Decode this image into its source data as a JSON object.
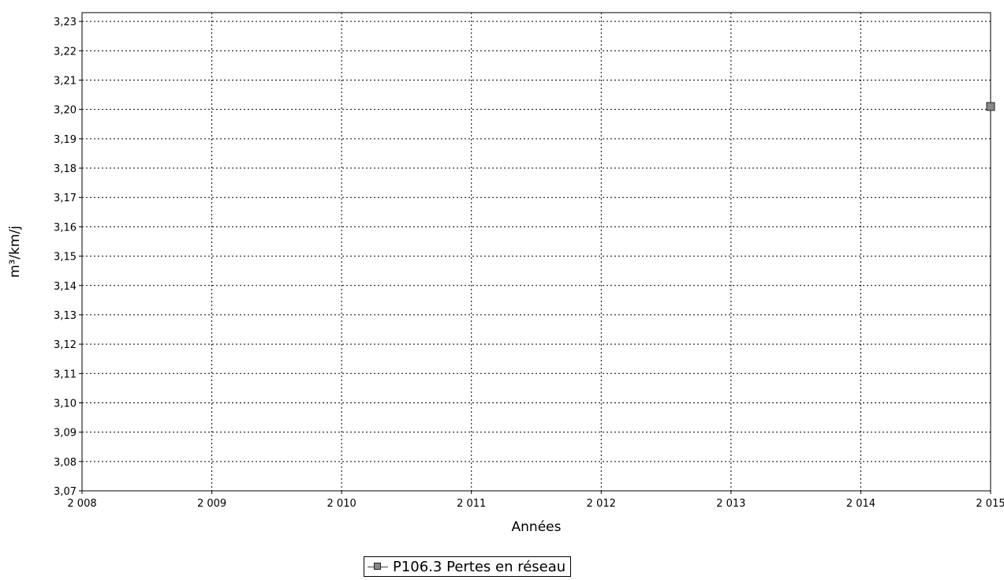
{
  "chart_data": {
    "type": "line",
    "xlabel": "Années",
    "ylabel": "m³/km/j",
    "x_ticks": [
      2008,
      2009,
      2010,
      2011,
      2012,
      2013,
      2014,
      2015
    ],
    "x_tick_labels": [
      "2 008",
      "2 009",
      "2 010",
      "2 011",
      "2 012",
      "2 013",
      "2 014",
      "2 015"
    ],
    "y_ticks": [
      3.07,
      3.08,
      3.09,
      3.1,
      3.11,
      3.12,
      3.13,
      3.14,
      3.15,
      3.16,
      3.17,
      3.18,
      3.19,
      3.2,
      3.21,
      3.22,
      3.23
    ],
    "y_tick_labels": [
      "3,07",
      "3,08",
      "3,09",
      "3,10",
      "3,11",
      "3,12",
      "3,13",
      "3,14",
      "3,15",
      "3,16",
      "3,17",
      "3,18",
      "3,19",
      "3,20",
      "3,21",
      "3,22",
      "3,23"
    ],
    "xlim": [
      2008,
      2015
    ],
    "ylim": [
      3.07,
      3.233
    ],
    "grid": true,
    "legend_position": "bottom-center",
    "series": [
      {
        "name": "P106.3 Pertes en réseau",
        "color": "#888888",
        "marker": "square",
        "x": [
          2015
        ],
        "y": [
          3.201
        ]
      }
    ]
  },
  "legend": {
    "label": "P106.3 Pertes en réseau"
  }
}
